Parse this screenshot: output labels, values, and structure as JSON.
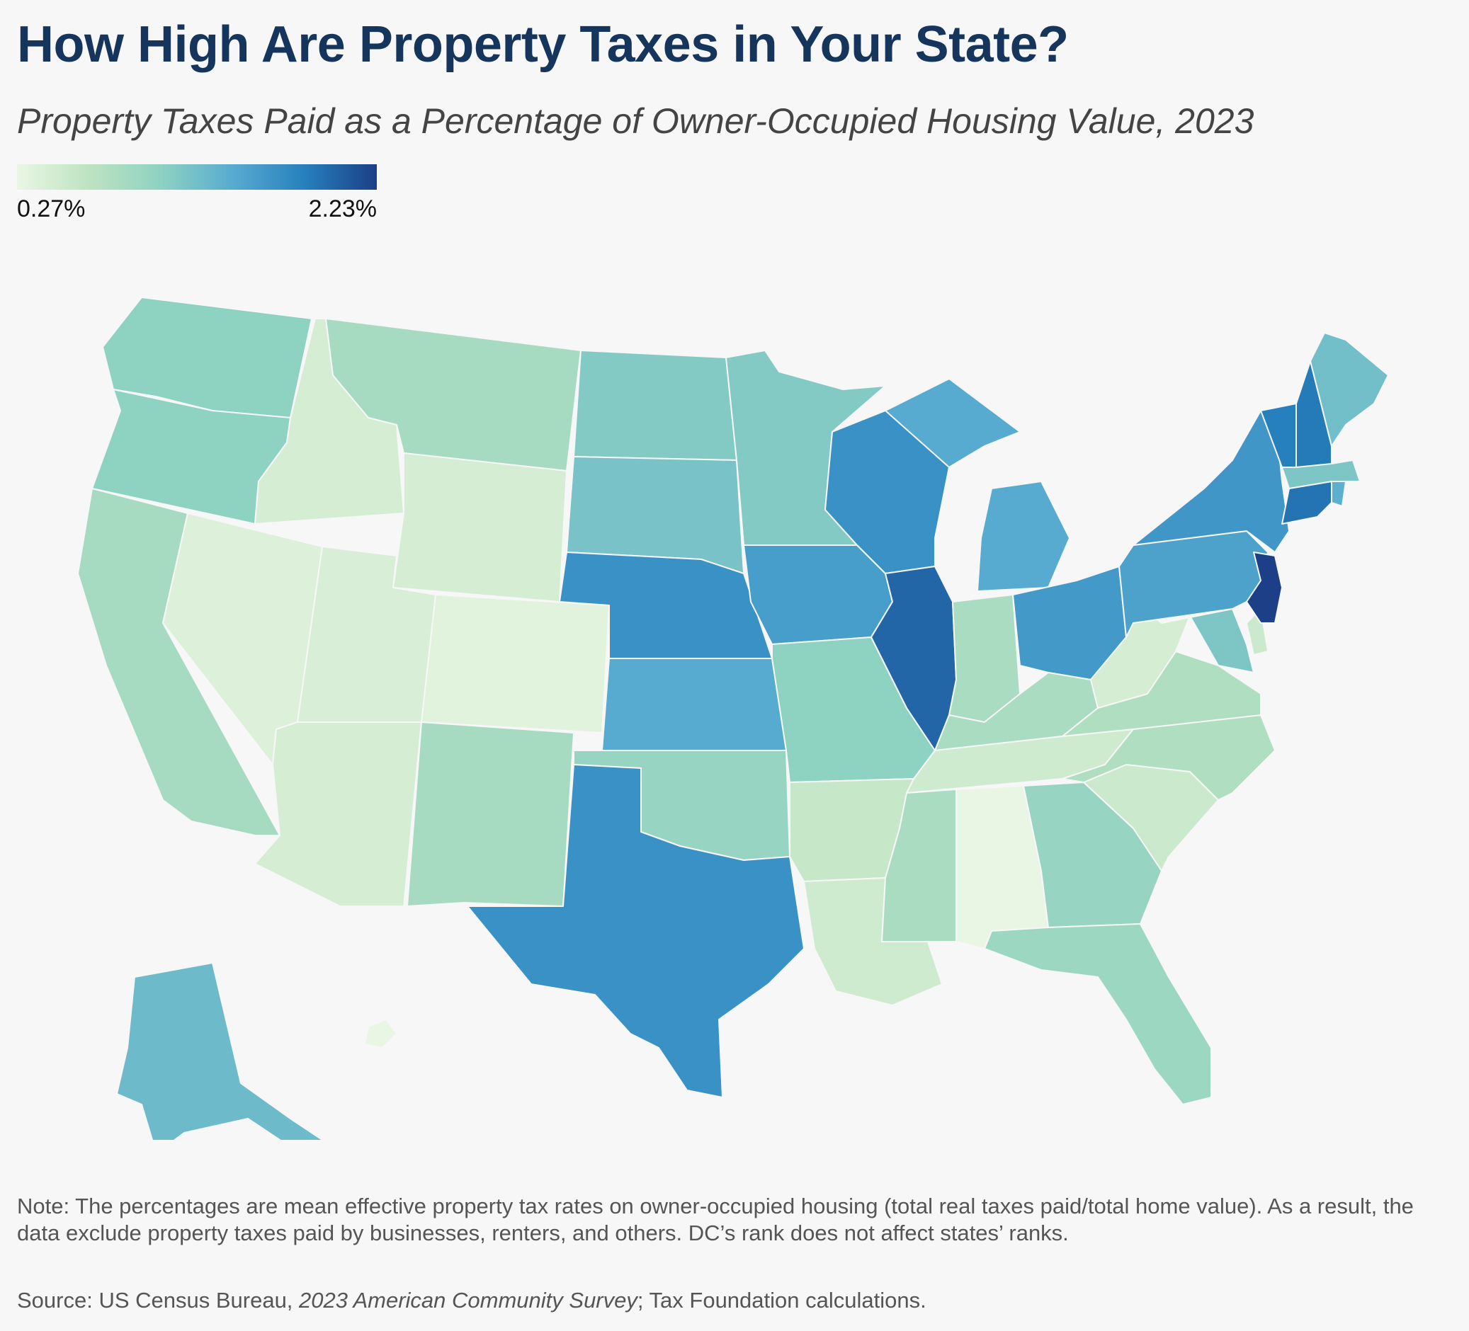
{
  "title": "How High Are Property Taxes in Your State?",
  "subtitle": "Property Taxes Paid as a Percentage of Owner-Occupied Housing Value, 2023",
  "legend": {
    "min_label": "0.27%",
    "max_label": "2.23%",
    "min_value": 0.27,
    "max_value": 2.23,
    "colors": [
      "#eaf6e4",
      "#bde3c1",
      "#8ed2c2",
      "#57abd0",
      "#2680bd",
      "#1d3f87"
    ]
  },
  "note": "Note: The percentages are mean effective property tax rates on owner-occupied housing (total real taxes paid/total home value). As a result, the data exclude property taxes paid by businesses, renters, and others. DC’s rank does not affect states’ ranks.",
  "source": {
    "prefix": "Source: US Census Bureau, ",
    "survey": "2023 American Community Survey",
    "suffix": "; Tax Foundation calculations."
  },
  "map_data": {
    "type": "choropleth",
    "unit": "%",
    "scale": "sequential",
    "shade_levels": {
      "WA": 3,
      "OR": 3,
      "CA": 2.5,
      "ID": 1.5,
      "NV": 1.3,
      "MT": 2.5,
      "WY": 1.5,
      "UT": 1.4,
      "CO": 1.2,
      "AZ": 1.5,
      "NM": 2.5,
      "ND": 3.2,
      "SD": 3.4,
      "NE": 4.6,
      "KS": 4.0,
      "OK": 2.8,
      "TX": 4.6,
      "MN": 3.2,
      "IA": 4.3,
      "MO": 3.0,
      "AR": 1.8,
      "LA": 1.6,
      "WI": 4.6,
      "IL": 5.4,
      "MI": 4.0,
      "IN": 2.4,
      "OH": 4.4,
      "KY": 2.4,
      "TN": 1.6,
      "MS": 2.4,
      "AL": 1.0,
      "GA": 2.8,
      "FL": 2.7,
      "SC": 1.7,
      "NC": 2.3,
      "VA": 2.3,
      "WV": 1.5,
      "PA": 4.2,
      "NY": 4.5,
      "VT": 5.0,
      "NH": 5.1,
      "ME": 3.5,
      "MA": 3.3,
      "RI": 3.9,
      "CT": 5.2,
      "NJ": 6.0,
      "DE": 1.7,
      "MD": 3.3,
      "AK": 3.6,
      "HI": 1.0
    }
  }
}
